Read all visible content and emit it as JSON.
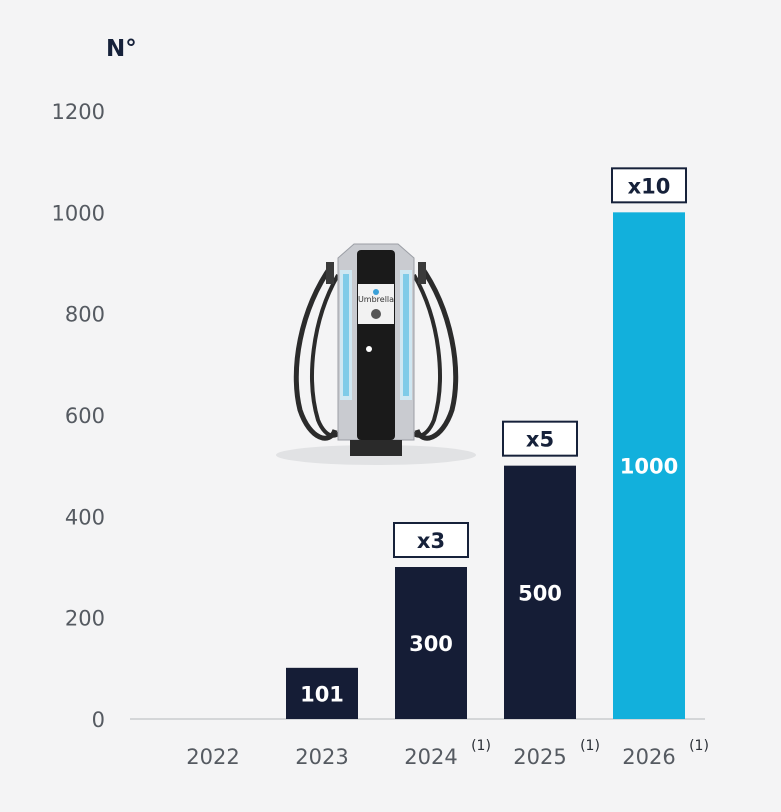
{
  "colors": {
    "dark_bar": "#151d36",
    "accent_bar": "#12b0dc",
    "label_dark": "#16213a"
  },
  "chart_data": {
    "type": "bar",
    "ylabel": "N°",
    "ylim": [
      0,
      1200
    ],
    "yticks": [
      0,
      200,
      400,
      600,
      800,
      1000,
      1200
    ],
    "categories": [
      "2022",
      "2023",
      "2024",
      "2025",
      "2026"
    ],
    "footnotes": [
      "",
      "",
      "(1)",
      "(1)",
      "(1)"
    ],
    "values": [
      0,
      101,
      300,
      500,
      1000
    ],
    "value_labels": [
      "",
      "101",
      "300",
      "500",
      "1000"
    ],
    "multipliers": [
      "",
      "",
      "x3",
      "x5",
      "x10"
    ],
    "highlight": [
      false,
      false,
      false,
      false,
      true
    ],
    "image": "ev-charging-station (Umbrella)",
    "image_text": [
      "Umbrella"
    ]
  }
}
